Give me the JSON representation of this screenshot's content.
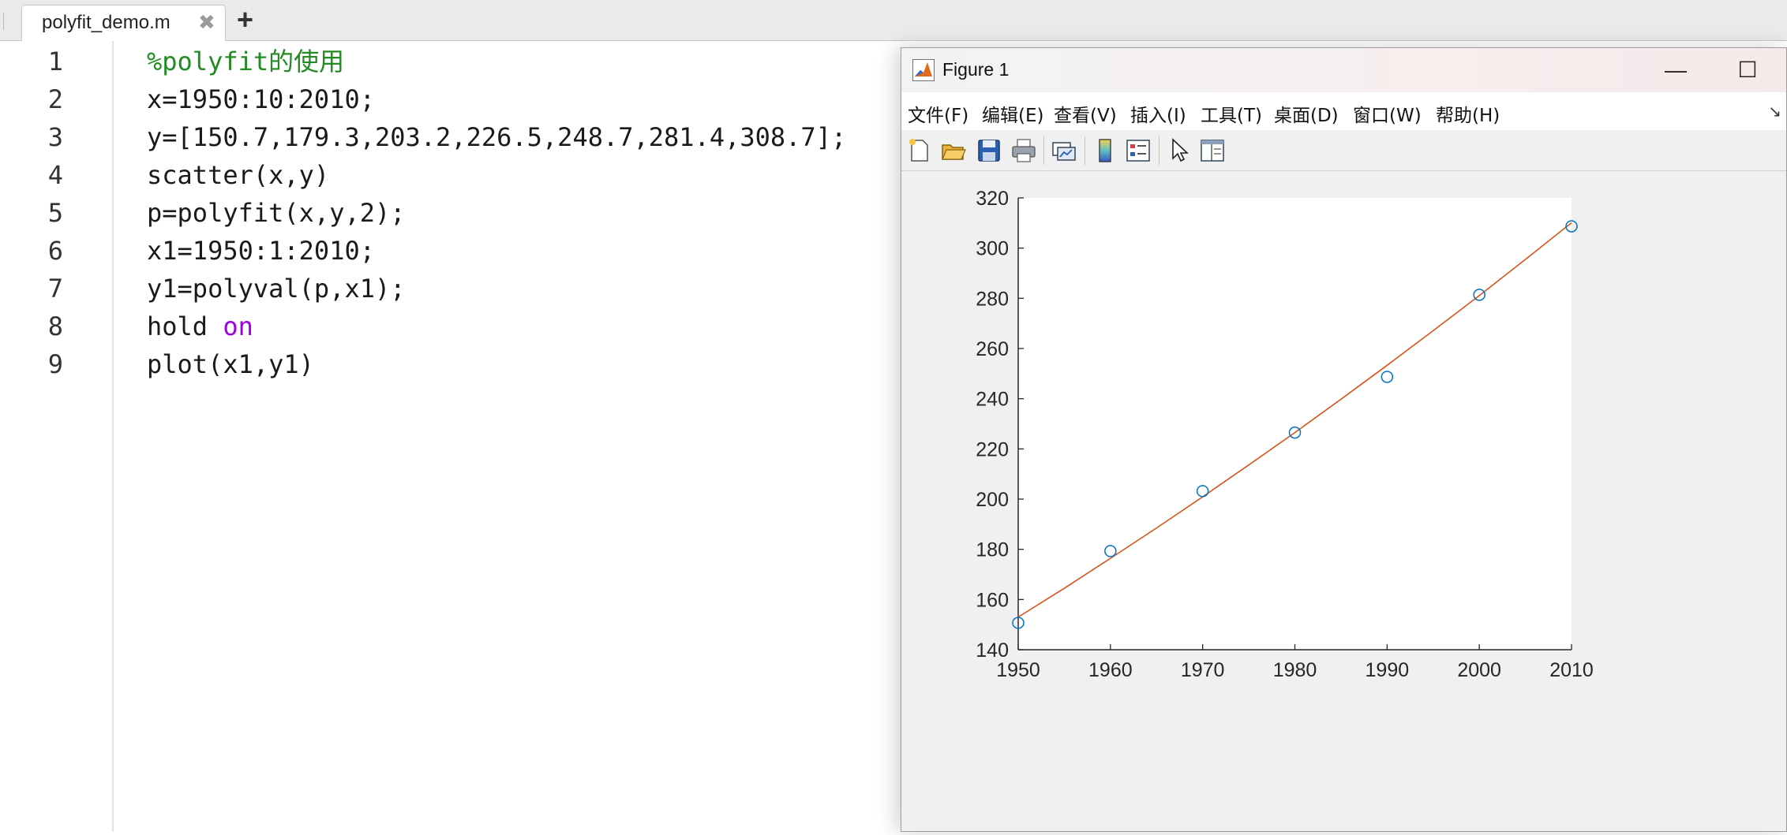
{
  "editor": {
    "tab_label": "polyfit_demo.m",
    "tab_close": "✖",
    "tab_add": "+",
    "lines": [
      {
        "n": "1",
        "parts": [
          {
            "t": "%polyfit",
            "c": "comment"
          },
          {
            "t": "的使用",
            "c": "comment comment-cjk"
          }
        ]
      },
      {
        "n": "2",
        "parts": [
          {
            "t": "x=1950:10:2010;",
            "c": ""
          }
        ]
      },
      {
        "n": "3",
        "parts": [
          {
            "t": "y=[150.7,179.3,203.2,226.5,248.7,281.4,308.7];",
            "c": ""
          }
        ]
      },
      {
        "n": "4",
        "parts": [
          {
            "t": "scatter(x,y)",
            "c": ""
          }
        ]
      },
      {
        "n": "5",
        "parts": [
          {
            "t": "p=polyfit(x,y,2);",
            "c": ""
          }
        ]
      },
      {
        "n": "6",
        "parts": [
          {
            "t": "x1=1950:1:2010;",
            "c": ""
          }
        ]
      },
      {
        "n": "7",
        "parts": [
          {
            "t": "y1=polyval(p,x1);",
            "c": ""
          }
        ]
      },
      {
        "n": "8",
        "parts": [
          {
            "t": "hold ",
            "c": ""
          },
          {
            "t": "on",
            "c": "kw"
          }
        ]
      },
      {
        "n": "9",
        "parts": [
          {
            "t": "plot(x1,y1)",
            "c": ""
          }
        ]
      }
    ]
  },
  "figure": {
    "title": "Figure 1",
    "controls": {
      "minimize": "—",
      "maximize": "☐",
      "close": "✕"
    },
    "menu": [
      "文件(F)",
      "编辑(E)",
      "查看(V)",
      "插入(I)",
      "工具(T)",
      "桌面(D)",
      "窗口(W)",
      "帮助(H)"
    ],
    "menu_overflow": "↘",
    "toolbar_icons": [
      "new-figure-icon",
      "open-file-icon",
      "save-icon",
      "print-icon",
      "link-plot-icon",
      "colorbar-icon",
      "legend-icon",
      "edit-plot-icon",
      "property-inspector-icon"
    ]
  },
  "chart_data": {
    "type": "scatter",
    "title": "",
    "xlabel": "",
    "ylabel": "",
    "xlim": [
      1950,
      2010
    ],
    "ylim": [
      140,
      320
    ],
    "xticks": [
      1950,
      1960,
      1970,
      1980,
      1990,
      2000,
      2010
    ],
    "yticks": [
      140,
      160,
      180,
      200,
      220,
      240,
      260,
      280,
      300,
      320
    ],
    "grid": false,
    "series": [
      {
        "kind": "scatter",
        "marker": "circle",
        "color": "#0072bd",
        "x": [
          1950,
          1960,
          1970,
          1980,
          1990,
          2000,
          2010
        ],
        "y": [
          150.7,
          179.3,
          203.2,
          226.5,
          248.7,
          281.4,
          308.7
        ]
      },
      {
        "kind": "line",
        "color": "#d95319",
        "x": [
          1950,
          1955,
          1960,
          1965,
          1970,
          1975,
          1980,
          1985,
          1990,
          1995,
          2000,
          2005,
          2010
        ],
        "y": [
          153.0,
          164.5,
          176.4,
          188.5,
          200.9,
          213.6,
          226.5,
          239.8,
          253.3,
          267.1,
          281.1,
          295.5,
          310.1
        ]
      }
    ]
  }
}
